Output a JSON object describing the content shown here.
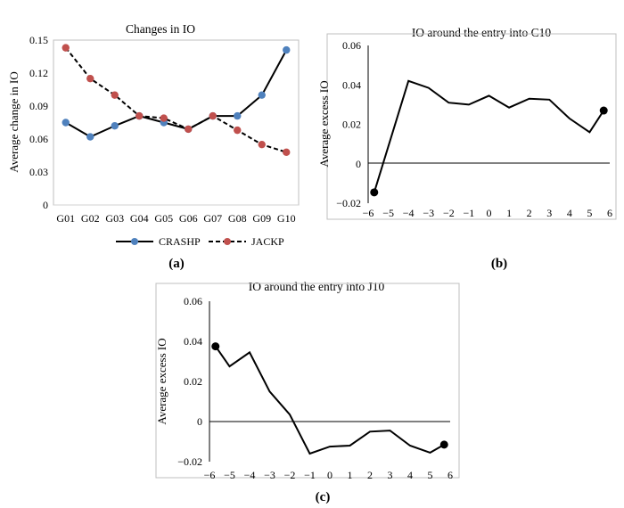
{
  "chart_data": [
    {
      "id": "a",
      "panel_label": "(a)",
      "type": "line",
      "title": "Changes in IO",
      "xlabel": "",
      "ylabel": "Average change in IO",
      "ylim": [
        0,
        0.15
      ],
      "yticks": [
        "0",
        "0.03",
        "0.06",
        "0.09",
        "0.12",
        "0.15"
      ],
      "categories": [
        "G01",
        "G02",
        "G03",
        "G04",
        "G05",
        "G06",
        "G07",
        "G08",
        "G09",
        "G10"
      ],
      "series": [
        {
          "name": "CRASHP",
          "line": "solid",
          "marker_color": "#4f81bd",
          "values": [
            0.075,
            0.062,
            0.072,
            0.081,
            0.075,
            0.069,
            0.081,
            0.081,
            0.1,
            0.141
          ]
        },
        {
          "name": "JACKP",
          "line": "dashed",
          "marker_color": "#c0504d",
          "values": [
            0.143,
            0.115,
            0.1,
            0.081,
            0.079,
            0.069,
            0.081,
            0.068,
            0.055,
            0.048
          ]
        }
      ],
      "legend": "bottom"
    },
    {
      "id": "b",
      "panel_label": "(b)",
      "type": "line",
      "title": "IO around the entry into C10",
      "xlabel": "",
      "ylabel": "Average excess IO",
      "ylim": [
        -0.02,
        0.06
      ],
      "yticks": [
        "−0.02",
        "0",
        "0.02",
        "0.04",
        "0.06"
      ],
      "xticks": [
        "−6",
        "−5",
        "−4",
        "−3",
        "−2",
        "−1",
        "0",
        "1",
        "2",
        "3",
        "4",
        "5",
        "6"
      ],
      "x": [
        -5.7,
        -4,
        -3,
        -2,
        -1,
        0,
        1,
        2,
        3,
        4,
        5,
        5.7
      ],
      "values": [
        -0.0145,
        0.042,
        0.0385,
        0.031,
        0.03,
        0.0345,
        0.0285,
        0.033,
        0.0325,
        0.023,
        0.016,
        0.027
      ],
      "endpoint_markers": true
    },
    {
      "id": "c",
      "panel_label": "(c)",
      "type": "line",
      "title": "IO around the entry into J10",
      "xlabel": "",
      "ylabel": "Average excess IO",
      "ylim": [
        -0.02,
        0.06
      ],
      "yticks": [
        "−0.02",
        "0",
        "0.02",
        "0.04",
        "0.06"
      ],
      "xticks": [
        "−6",
        "−5",
        "−4",
        "−3",
        "−2",
        "−1",
        "0",
        "1",
        "2",
        "3",
        "4",
        "5",
        "6"
      ],
      "x": [
        -5.7,
        -5,
        -4,
        -3,
        -2,
        -1,
        0,
        1,
        2,
        3,
        4,
        5,
        5.7
      ],
      "values": [
        0.0375,
        0.0275,
        0.0345,
        0.015,
        0.0035,
        -0.016,
        -0.0125,
        -0.012,
        -0.005,
        -0.0045,
        -0.012,
        -0.0155,
        -0.0115
      ],
      "endpoint_markers": true
    }
  ]
}
